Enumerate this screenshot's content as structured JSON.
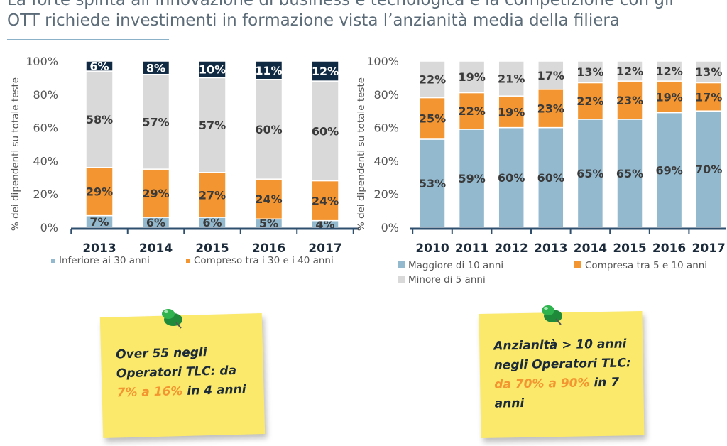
{
  "slide": {
    "title_line1": "La forte spinta all’innovazione di business e tecnologica e la competizione con gli",
    "title_line2": "OTT richiede investimenti in formazione vista l’anzianità media della filiera"
  },
  "colors": {
    "blue": "#93b9cf",
    "orange": "#f39530",
    "gray": "#d9d9d9",
    "navy": "#102a43",
    "axis": "#2f4f6f"
  },
  "chart_data": [
    {
      "type": "bar",
      "stacked": true,
      "categories": [
        "2013",
        "2014",
        "2015",
        "2016",
        "2017"
      ],
      "series": [
        {
          "name": "Inferiore ai 30 anni",
          "color": "#93b9cf",
          "values": [
            7,
            6,
            6,
            5,
            4
          ]
        },
        {
          "name": "Compreso tra i 30 e i 40 anni",
          "color": "#f39530",
          "values": [
            29,
            29,
            27,
            24,
            24
          ]
        },
        {
          "name": "",
          "color": "#d9d9d9",
          "values": [
            58,
            57,
            57,
            60,
            60
          ]
        },
        {
          "name": "",
          "color": "#102a43",
          "values": [
            6,
            8,
            10,
            11,
            12
          ]
        }
      ],
      "ylabel": "% dei dipendenti su totale teste",
      "ylim": [
        0,
        100
      ],
      "yticks": [
        "0%",
        "20%",
        "40%",
        "60%",
        "80%",
        "100%"
      ],
      "legend_position": "bottom"
    },
    {
      "type": "bar",
      "stacked": true,
      "categories": [
        "2010",
        "2011",
        "2012",
        "2013",
        "2014",
        "2015",
        "2016",
        "2017"
      ],
      "series": [
        {
          "name": "Maggiore di 10 anni",
          "color": "#93b9cf",
          "values": [
            53,
            59,
            60,
            60,
            65,
            65,
            69,
            70
          ]
        },
        {
          "name": "Compresa tra 5 e 10 anni",
          "color": "#f39530",
          "values": [
            25,
            22,
            19,
            23,
            22,
            23,
            19,
            17
          ]
        },
        {
          "name": "Minore di 5 anni",
          "color": "#d9d9d9",
          "values": [
            22,
            19,
            21,
            17,
            13,
            12,
            12,
            13
          ]
        }
      ],
      "ylabel": "% dei dipendenti su totale teste",
      "ylim": [
        0,
        100
      ],
      "yticks": [
        "0%",
        "20%",
        "40%",
        "60%",
        "80%",
        "100%"
      ],
      "legend_position": "bottom"
    }
  ],
  "notes": [
    {
      "line1": "Over 55 negli",
      "line2": "Operatori TLC: da",
      "highlight": "7% a 16%",
      "tail": " in 4 anni"
    },
    {
      "line1": "Anzianità > 10 anni",
      "line2": "negli Operatori TLC:",
      "highlight": "da 70% a 90%",
      "tail": " in 7",
      "line4": "anni"
    }
  ]
}
